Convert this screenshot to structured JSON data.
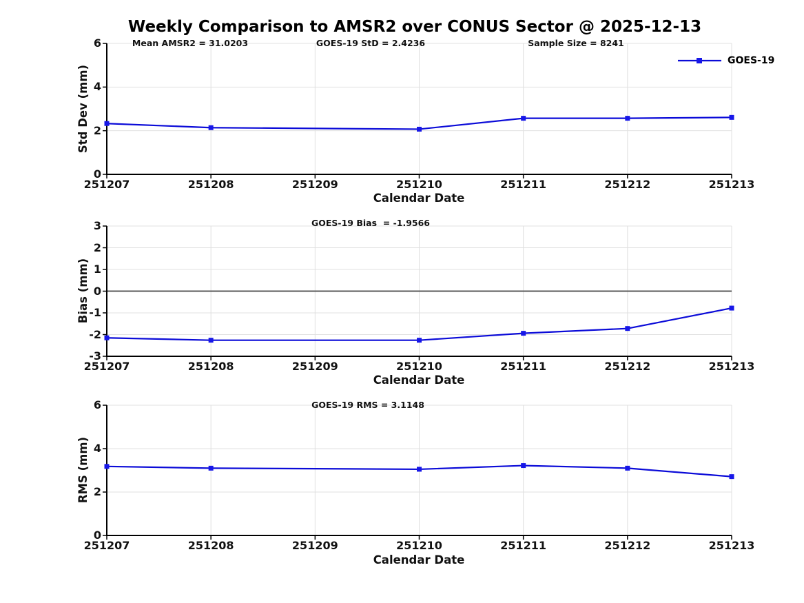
{
  "title": "Weekly Comparison to AMSR2 over CONUS Sector @ 2025-12-13",
  "legend": {
    "label": "GOES-19"
  },
  "colors": {
    "line": "#0b0bd8",
    "marker": "#1717e8",
    "grid": "#e0e0e0",
    "zero_line": "#5a5a5a",
    "axis": "#000000",
    "text": "#111111"
  },
  "chart_data": [
    {
      "type": "line",
      "series": [
        {
          "name": "GOES-19",
          "x": [
            251207,
            251208,
            251210,
            251211,
            251212,
            251213
          ],
          "values": [
            2.33,
            2.14,
            2.07,
            2.57,
            2.57,
            2.61
          ]
        }
      ],
      "x_ticks": [
        "251207",
        "251208",
        "251209",
        "251210",
        "251211",
        "251212",
        "251213"
      ],
      "yticks": [
        0,
        2,
        4,
        6
      ],
      "ylim": [
        0,
        6
      ],
      "xlabel": "Calendar Date",
      "ylabel": "Std Dev (mm)",
      "grid": true,
      "zero_line": false,
      "legend_position": "top-right",
      "annotations": {
        "left": "Mean AMSR2 = 31.0203",
        "center": "GOES-19 StD = 2.4236",
        "right": "Sample Size = 8241"
      }
    },
    {
      "type": "line",
      "series": [
        {
          "name": "GOES-19",
          "x": [
            251207,
            251208,
            251210,
            251211,
            251212,
            251213
          ],
          "values": [
            -2.15,
            -2.26,
            -2.26,
            -1.94,
            -1.72,
            -0.78
          ]
        }
      ],
      "x_ticks": [
        "251207",
        "251208",
        "251209",
        "251210",
        "251211",
        "251212",
        "251213"
      ],
      "yticks": [
        3,
        2,
        1,
        0,
        -1,
        -2,
        -3
      ],
      "ylim": [
        -3,
        3
      ],
      "xlabel": "Calendar Date",
      "ylabel": "Bias (mm)",
      "grid": true,
      "zero_line": true,
      "annotation": "GOES-19 Bias  = -1.9566"
    },
    {
      "type": "line",
      "series": [
        {
          "name": "GOES-19",
          "x": [
            251207,
            251208,
            251210,
            251211,
            251212,
            251213
          ],
          "values": [
            3.18,
            3.1,
            3.05,
            3.22,
            3.1,
            2.71
          ]
        }
      ],
      "x_ticks": [
        "251207",
        "251208",
        "251209",
        "251210",
        "251211",
        "251212",
        "251213"
      ],
      "yticks": [
        0,
        2,
        4,
        6
      ],
      "ylim": [
        0,
        6
      ],
      "xlabel": "Calendar Date",
      "ylabel": "RMS (mm)",
      "grid": true,
      "zero_line": false,
      "annotation": "GOES-19 RMS = 3.1148"
    }
  ]
}
